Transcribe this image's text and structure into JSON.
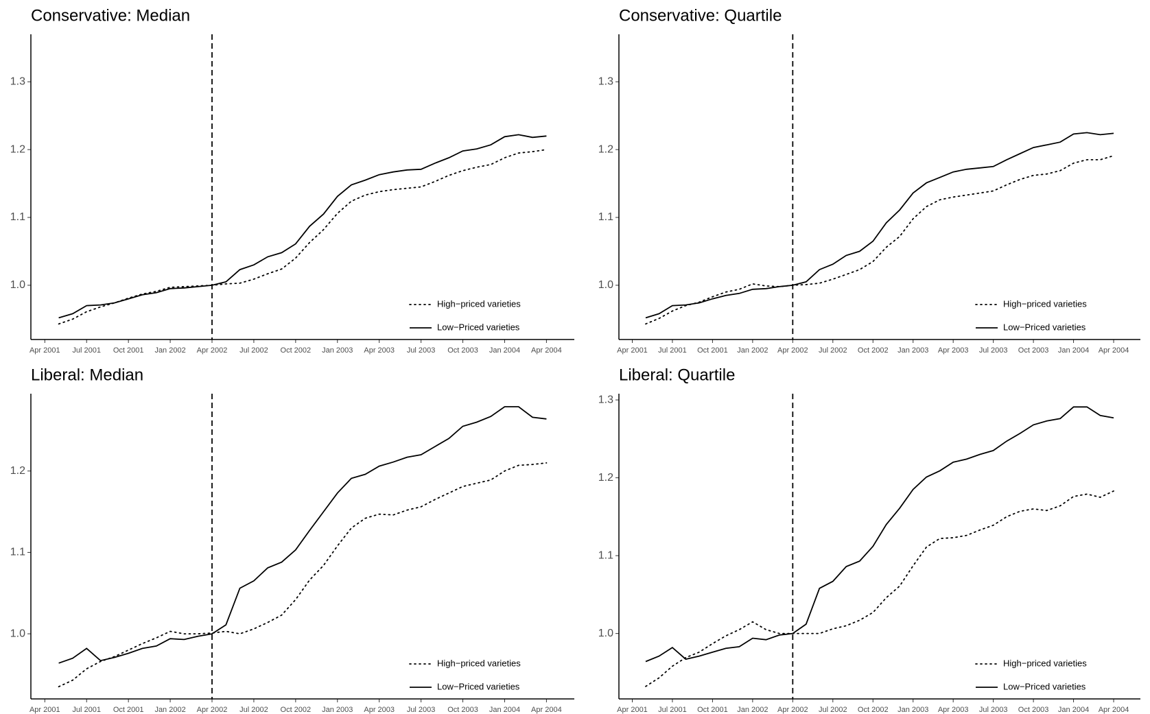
{
  "chart_data": [
    {
      "type": "line",
      "title": "Conservative: Median",
      "x": [
        "2001-05",
        "2001-06",
        "2001-07",
        "2001-08",
        "2001-09",
        "2001-10",
        "2001-11",
        "2001-12",
        "2002-01",
        "2002-02",
        "2002-03",
        "2002-04",
        "2002-05",
        "2002-06",
        "2002-07",
        "2002-08",
        "2002-09",
        "2002-10",
        "2002-11",
        "2002-12",
        "2003-01",
        "2003-02",
        "2003-03",
        "2003-04",
        "2003-05",
        "2003-06",
        "2003-07",
        "2003-08",
        "2003-09",
        "2003-10",
        "2003-11",
        "2003-12",
        "2004-01",
        "2004-02",
        "2004-03",
        "2004-04"
      ],
      "series": [
        {
          "name": "High−priced varieties",
          "color": "#000000",
          "dash": "dotted",
          "values": [
            0.943,
            0.95,
            0.961,
            0.968,
            0.974,
            0.981,
            0.987,
            0.991,
            0.997,
            0.998,
            0.999,
            1.0,
            1.002,
            1.003,
            1.009,
            1.017,
            1.024,
            1.04,
            1.063,
            1.082,
            1.106,
            1.124,
            1.133,
            1.138,
            1.141,
            1.143,
            1.145,
            1.153,
            1.162,
            1.169,
            1.174,
            1.178,
            1.188,
            1.195,
            1.197,
            1.2
          ]
        },
        {
          "name": "Low−Priced varieties",
          "color": "#000000",
          "dash": "solid",
          "values": [
            0.952,
            0.958,
            0.97,
            0.971,
            0.974,
            0.98,
            0.986,
            0.989,
            0.995,
            0.996,
            0.998,
            1.0,
            1.005,
            1.023,
            1.03,
            1.042,
            1.048,
            1.061,
            1.087,
            1.105,
            1.131,
            1.148,
            1.155,
            1.163,
            1.167,
            1.17,
            1.171,
            1.18,
            1.188,
            1.198,
            1.201,
            1.207,
            1.219,
            1.222,
            1.218,
            1.22
          ]
        }
      ],
      "xlim": [
        "2001-03",
        "2004-06"
      ],
      "xticks": [
        {
          "value": "2001-04",
          "label": "Apr 2001"
        },
        {
          "value": "2001-07",
          "label": "Jul 2001"
        },
        {
          "value": "2001-10",
          "label": "Oct 2001"
        },
        {
          "value": "2002-01",
          "label": "Jan 2002"
        },
        {
          "value": "2002-04",
          "label": "Apr 2002"
        },
        {
          "value": "2002-07",
          "label": "Jul 2002"
        },
        {
          "value": "2002-10",
          "label": "Oct 2002"
        },
        {
          "value": "2003-01",
          "label": "Jan 2003"
        },
        {
          "value": "2003-04",
          "label": "Apr 2003"
        },
        {
          "value": "2003-07",
          "label": "Jul 2003"
        },
        {
          "value": "2003-10",
          "label": "Oct 2003"
        },
        {
          "value": "2004-01",
          "label": "Jan 2004"
        },
        {
          "value": "2004-04",
          "label": "Apr 2004"
        }
      ],
      "ylim": [
        0.92,
        1.37
      ],
      "yticks": [
        {
          "value": 1,
          "label": "1.0"
        },
        1.1,
        1.2,
        1.3
      ],
      "vline": "2002-04",
      "legend": "lower right"
    },
    {
      "type": "line",
      "title": "Conservative: Quartile",
      "x": [
        "2001-05",
        "2001-06",
        "2001-07",
        "2001-08",
        "2001-09",
        "2001-10",
        "2001-11",
        "2001-12",
        "2002-01",
        "2002-02",
        "2002-03",
        "2002-04",
        "2002-05",
        "2002-06",
        "2002-07",
        "2002-08",
        "2002-09",
        "2002-10",
        "2002-11",
        "2002-12",
        "2003-01",
        "2003-02",
        "2003-03",
        "2003-04",
        "2003-05",
        "2003-06",
        "2003-07",
        "2003-08",
        "2003-09",
        "2003-10",
        "2003-11",
        "2003-12",
        "2004-01",
        "2004-02",
        "2004-03",
        "2004-04"
      ],
      "series": [
        {
          "name": "High−priced varieties",
          "color": "#000000",
          "dash": "dotted",
          "values": [
            0.943,
            0.951,
            0.962,
            0.97,
            0.975,
            0.983,
            0.99,
            0.994,
            1.002,
            0.999,
            0.998,
            1.0,
            1.001,
            1.003,
            1.009,
            1.016,
            1.023,
            1.035,
            1.056,
            1.072,
            1.098,
            1.116,
            1.126,
            1.13,
            1.133,
            1.136,
            1.139,
            1.148,
            1.156,
            1.162,
            1.164,
            1.169,
            1.18,
            1.185,
            1.185,
            1.191
          ]
        },
        {
          "name": "Low−Priced varieties",
          "color": "#000000",
          "dash": "solid",
          "values": [
            0.952,
            0.958,
            0.97,
            0.971,
            0.974,
            0.98,
            0.985,
            0.988,
            0.994,
            0.995,
            0.998,
            1.0,
            1.005,
            1.023,
            1.031,
            1.044,
            1.05,
            1.065,
            1.092,
            1.111,
            1.136,
            1.151,
            1.159,
            1.167,
            1.171,
            1.173,
            1.175,
            1.185,
            1.194,
            1.203,
            1.207,
            1.211,
            1.223,
            1.225,
            1.222,
            1.224
          ]
        }
      ],
      "xlim": [
        "2001-03",
        "2004-06"
      ],
      "xticks": [
        {
          "value": "2001-04",
          "label": "Apr 2001"
        },
        {
          "value": "2001-07",
          "label": "Jul 2001"
        },
        {
          "value": "2001-10",
          "label": "Oct 2001"
        },
        {
          "value": "2002-01",
          "label": "Jan 2002"
        },
        {
          "value": "2002-04",
          "label": "Apr 2002"
        },
        {
          "value": "2002-07",
          "label": "Jul 2002"
        },
        {
          "value": "2002-10",
          "label": "Oct 2002"
        },
        {
          "value": "2003-01",
          "label": "Jan 2003"
        },
        {
          "value": "2003-04",
          "label": "Apr 2003"
        },
        {
          "value": "2003-07",
          "label": "Jul 2003"
        },
        {
          "value": "2003-10",
          "label": "Oct 2003"
        },
        {
          "value": "2004-01",
          "label": "Jan 2004"
        },
        {
          "value": "2004-04",
          "label": "Apr 2004"
        }
      ],
      "ylim": [
        0.92,
        1.37
      ],
      "yticks": [
        {
          "value": 1,
          "label": "1.0"
        },
        1.1,
        1.2,
        1.3
      ],
      "vline": "2002-04",
      "legend": "lower right"
    },
    {
      "type": "line",
      "title": "Liberal: Median",
      "x": [
        "2001-05",
        "2001-06",
        "2001-07",
        "2001-08",
        "2001-09",
        "2001-10",
        "2001-11",
        "2001-12",
        "2002-01",
        "2002-02",
        "2002-03",
        "2002-04",
        "2002-05",
        "2002-06",
        "2002-07",
        "2002-08",
        "2002-09",
        "2002-10",
        "2002-11",
        "2002-12",
        "2003-01",
        "2003-02",
        "2003-03",
        "2003-04",
        "2003-05",
        "2003-06",
        "2003-07",
        "2003-08",
        "2003-09",
        "2003-10",
        "2003-11",
        "2003-12",
        "2004-01",
        "2004-02",
        "2004-03",
        "2004-04"
      ],
      "series": [
        {
          "name": "High−priced varieties",
          "color": "#000000",
          "dash": "dotted",
          "values": [
            0.935,
            0.943,
            0.957,
            0.966,
            0.972,
            0.98,
            0.988,
            0.995,
            1.003,
            1.0,
            1.0,
            1.001,
            1.003,
            1.0,
            1.006,
            1.014,
            1.023,
            1.042,
            1.066,
            1.084,
            1.108,
            1.13,
            1.142,
            1.147,
            1.146,
            1.152,
            1.156,
            1.165,
            1.173,
            1.181,
            1.185,
            1.189,
            1.2,
            1.207,
            1.208,
            1.21
          ]
        },
        {
          "name": "Low−Priced varieties",
          "color": "#000000",
          "dash": "solid",
          "values": [
            0.964,
            0.97,
            0.982,
            0.967,
            0.971,
            0.976,
            0.982,
            0.985,
            0.994,
            0.993,
            0.997,
            1.0,
            1.011,
            1.056,
            1.065,
            1.081,
            1.088,
            1.103,
            1.127,
            1.15,
            1.173,
            1.191,
            1.196,
            1.206,
            1.211,
            1.217,
            1.22,
            1.23,
            1.24,
            1.255,
            1.26,
            1.267,
            1.279,
            1.279,
            1.266,
            1.264
          ]
        }
      ],
      "xlim": [
        "2001-03",
        "2004-06"
      ],
      "xticks": [
        {
          "value": "2001-04",
          "label": "Apr 2001"
        },
        {
          "value": "2001-07",
          "label": "Jul 2001"
        },
        {
          "value": "2001-10",
          "label": "Oct 2001"
        },
        {
          "value": "2002-01",
          "label": "Jan 2002"
        },
        {
          "value": "2002-04",
          "label": "Apr 2002"
        },
        {
          "value": "2002-07",
          "label": "Jul 2002"
        },
        {
          "value": "2002-10",
          "label": "Oct 2002"
        },
        {
          "value": "2003-01",
          "label": "Jan 2003"
        },
        {
          "value": "2003-04",
          "label": "Apr 2003"
        },
        {
          "value": "2003-07",
          "label": "Jul 2003"
        },
        {
          "value": "2003-10",
          "label": "Oct 2003"
        },
        {
          "value": "2004-01",
          "label": "Jan 2004"
        },
        {
          "value": "2004-04",
          "label": "Apr 2004"
        }
      ],
      "ylim": [
        0.92,
        1.295
      ],
      "yticks": [
        {
          "value": 1,
          "label": "1.0"
        },
        1.1,
        1.2
      ],
      "vline": "2002-04",
      "legend": "lower right"
    },
    {
      "type": "line",
      "title": "Liberal: Quartile",
      "x": [
        "2001-05",
        "2001-06",
        "2001-07",
        "2001-08",
        "2001-09",
        "2001-10",
        "2001-11",
        "2001-12",
        "2002-01",
        "2002-02",
        "2002-03",
        "2002-04",
        "2002-05",
        "2002-06",
        "2002-07",
        "2002-08",
        "2002-09",
        "2002-10",
        "2002-11",
        "2002-12",
        "2003-01",
        "2003-02",
        "2003-03",
        "2003-04",
        "2003-05",
        "2003-06",
        "2003-07",
        "2003-08",
        "2003-09",
        "2003-10",
        "2003-11",
        "2003-12",
        "2004-01",
        "2004-02",
        "2004-03",
        "2004-04"
      ],
      "series": [
        {
          "name": "High−priced varieties",
          "color": "#000000",
          "dash": "dotted",
          "values": [
            0.932,
            0.943,
            0.958,
            0.969,
            0.976,
            0.987,
            0.997,
            1.005,
            1.015,
            1.005,
            1.0,
            1.0,
            1.0,
            1.0,
            1.006,
            1.01,
            1.017,
            1.027,
            1.046,
            1.061,
            1.087,
            1.111,
            1.122,
            1.123,
            1.126,
            1.133,
            1.139,
            1.15,
            1.157,
            1.16,
            1.158,
            1.164,
            1.176,
            1.179,
            1.175,
            1.183
          ]
        },
        {
          "name": "Low−Priced varieties",
          "color": "#000000",
          "dash": "solid",
          "values": [
            0.964,
            0.971,
            0.982,
            0.967,
            0.971,
            0.976,
            0.981,
            0.983,
            0.994,
            0.992,
            0.998,
            1.0,
            1.012,
            1.058,
            1.067,
            1.086,
            1.093,
            1.112,
            1.14,
            1.161,
            1.185,
            1.201,
            1.209,
            1.22,
            1.224,
            1.23,
            1.235,
            1.247,
            1.257,
            1.268,
            1.273,
            1.276,
            1.291,
            1.291,
            1.28,
            1.277
          ]
        }
      ],
      "xlim": [
        "2001-03",
        "2004-06"
      ],
      "xticks": [
        {
          "value": "2001-04",
          "label": "Apr 2001"
        },
        {
          "value": "2001-07",
          "label": "Jul 2001"
        },
        {
          "value": "2001-10",
          "label": "Oct 2001"
        },
        {
          "value": "2002-01",
          "label": "Jan 2002"
        },
        {
          "value": "2002-04",
          "label": "Apr 2002"
        },
        {
          "value": "2002-07",
          "label": "Jul 2002"
        },
        {
          "value": "2002-10",
          "label": "Oct 2002"
        },
        {
          "value": "2003-01",
          "label": "Jan 2003"
        },
        {
          "value": "2003-04",
          "label": "Apr 2003"
        },
        {
          "value": "2003-07",
          "label": "Jul 2003"
        },
        {
          "value": "2003-10",
          "label": "Oct 2003"
        },
        {
          "value": "2004-01",
          "label": "Jan 2004"
        },
        {
          "value": "2004-04",
          "label": "Apr 2004"
        }
      ],
      "ylim": [
        0.916,
        1.308
      ],
      "yticks": [
        {
          "value": 1,
          "label": "1.0"
        },
        1.1,
        1.2,
        1.3
      ],
      "vline": "2002-04",
      "legend": "lower right"
    }
  ]
}
